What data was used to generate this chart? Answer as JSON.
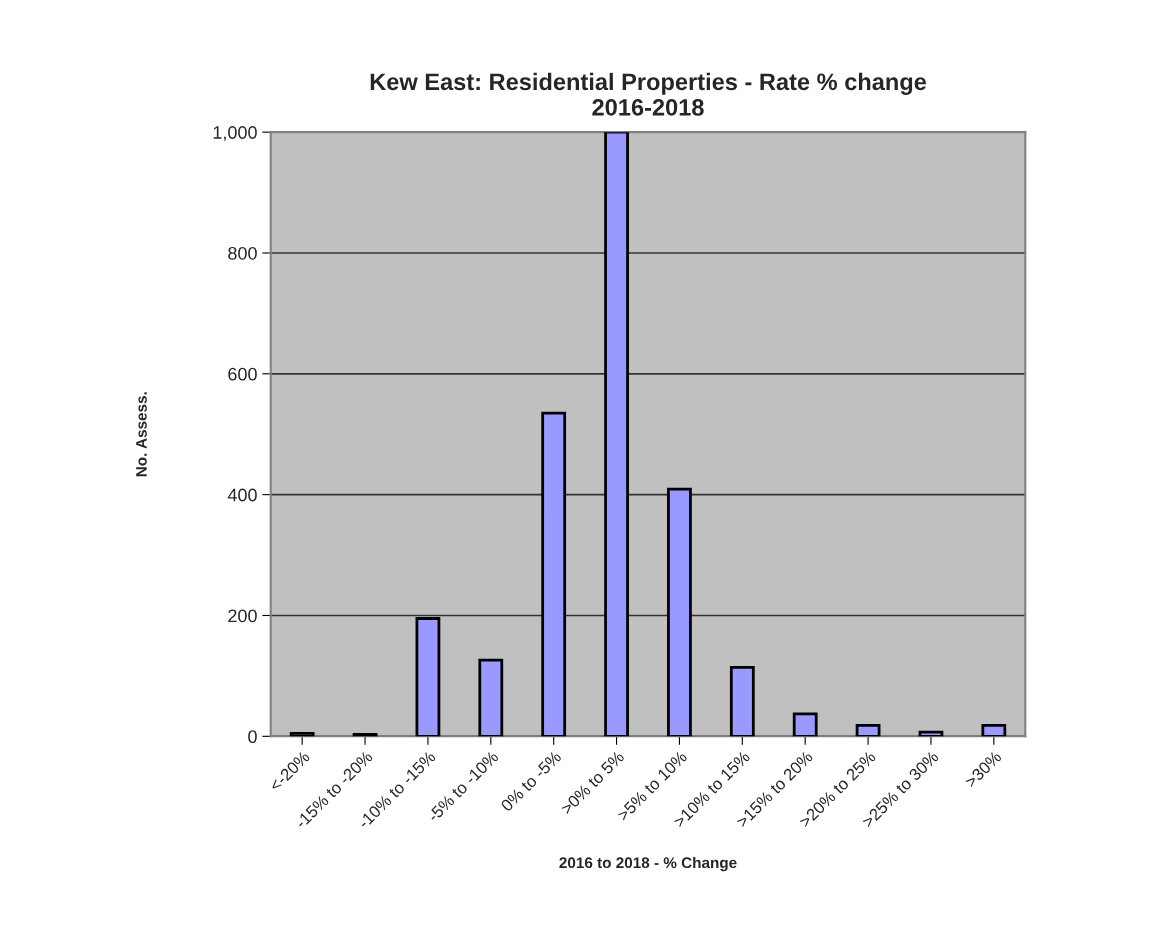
{
  "chart_data": {
    "type": "bar",
    "title": "Kew East: Residential Properties - Rate % change\n2016-2018",
    "xlabel": "2016 to 2018 - % Change",
    "ylabel": "No. Assess.",
    "categories": [
      "<-20%",
      "-15% to -20%",
      "-10% to -15%",
      "-5% to -10%",
      "0% to -5%",
      ">0% to 5%",
      ">5% to 10%",
      ">10% to 15%",
      ">15% to 20%",
      ">20% to 25%",
      ">25% to 30%",
      ">30%"
    ],
    "values": [
      5,
      3,
      195,
      126,
      535,
      1000,
      409,
      114,
      37,
      18,
      7,
      18
    ],
    "color": "#9999ff",
    "ylim": [
      0,
      1000
    ],
    "yticks": [
      0,
      200,
      400,
      600,
      {
        "value": 800,
        "label": "800"
      },
      {
        "value": 1000,
        "label": "1,000"
      }
    ],
    "grid": "y",
    "legend": false
  }
}
